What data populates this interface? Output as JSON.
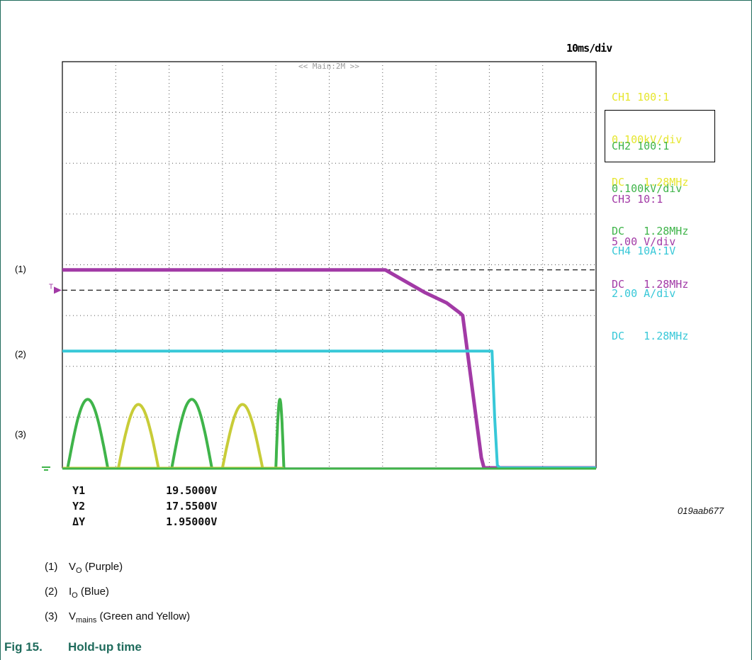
{
  "chart_data": {
    "type": "line",
    "title": "Hold-up time",
    "timebase": "10ms/div",
    "banner": "<< Main:2M >>",
    "grid": true,
    "divisions": {
      "x": 10,
      "y": 8
    },
    "xlim_div": [
      0,
      10
    ],
    "ylim_div": [
      0,
      8
    ],
    "channels": [
      {
        "id": "CH1",
        "lines": [
          "CH1 100:1",
          "0.100kV/div",
          "DC   1.28MHz"
        ],
        "color": "#e6e62e"
      },
      {
        "id": "CH2",
        "lines": [
          "CH2 100:1",
          "0.100kV/div",
          "DC   1.28MHz"
        ],
        "color": "#3fb44a",
        "boxed": true
      },
      {
        "id": "CH3",
        "lines": [
          "CH3 10:1",
          "5.00 V/div",
          "DC   1.28MHz"
        ],
        "color": "#a23aa6"
      },
      {
        "id": "CH4",
        "lines": [
          "CH4 10A:1V",
          "2.00 A/div",
          "DC   1.28MHz"
        ],
        "color": "#38c8d8"
      }
    ],
    "markers": [
      "(1)",
      "(2)",
      "(3)"
    ],
    "trigger_marker": "T",
    "series": [
      {
        "name": "VO",
        "channel": "CH3",
        "color": "#a23aa6",
        "points_div": [
          [
            0,
            3.9
          ],
          [
            6.05,
            3.9
          ],
          [
            6.3,
            3.75
          ],
          [
            6.8,
            3.45
          ],
          [
            7.2,
            3.25
          ],
          [
            7.45,
            3.05
          ],
          [
            7.5,
            3.0
          ],
          [
            7.85,
            0.2
          ],
          [
            7.9,
            0.0
          ],
          [
            10,
            0.0
          ]
        ]
      },
      {
        "name": "IO",
        "channel": "CH4",
        "color": "#38c8d8",
        "points_div": [
          [
            0,
            2.3
          ],
          [
            8.05,
            2.3
          ],
          [
            8.1,
            1.0
          ],
          [
            8.15,
            0.05
          ],
          [
            8.2,
            0.0
          ],
          [
            10,
            0.0
          ]
        ]
      },
      {
        "name": "Vmains (green)",
        "channel": "CH2",
        "color": "#3fb44a",
        "humps_div": [
          [
            0.1,
            0.85
          ],
          [
            2.05,
            2.8
          ],
          [
            4.0,
            4.15
          ]
        ],
        "peak_div": 1.35
      },
      {
        "name": "Vmains (yellow)",
        "channel": "CH1",
        "color": "#c8cc38",
        "humps_div": [
          [
            1.05,
            1.8
          ],
          [
            3.0,
            3.75
          ]
        ],
        "peak_div": 1.25
      }
    ],
    "cursors": {
      "y1_div": 3.9,
      "y2_div": 3.5,
      "readout": [
        {
          "label": "Y1",
          "value": "19.5000V"
        },
        {
          "label": "Y2",
          "value": "17.5500V"
        },
        {
          "label": "ΔY",
          "value": "1.95000V"
        }
      ]
    }
  },
  "figure_id": "019aab677",
  "legend": [
    {
      "num": "(1)",
      "sym": "V",
      "sub": "O",
      "desc": "(Purple)"
    },
    {
      "num": "(2)",
      "sym": "I",
      "sub": "O",
      "desc": "(Blue)"
    },
    {
      "num": "(3)",
      "sym": "V",
      "sub": "mains",
      "desc": "(Green and Yellow)"
    }
  ],
  "caption": {
    "number": "Fig 15.",
    "title": "Hold-up time"
  }
}
